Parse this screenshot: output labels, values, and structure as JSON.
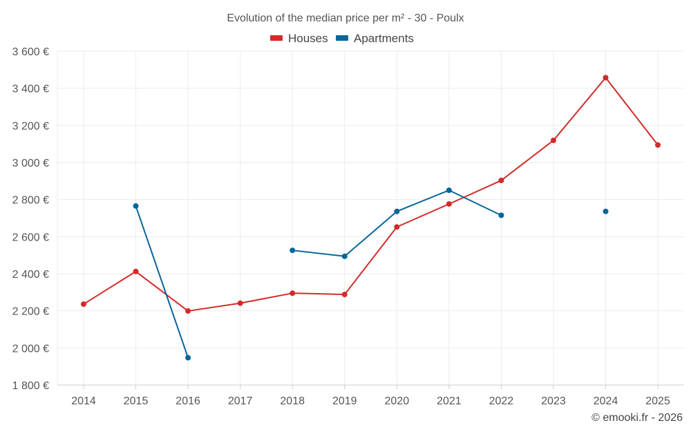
{
  "chart_data": {
    "type": "line",
    "title": "Evolution of the median price per m² - 30 - Poulx",
    "categories": [
      "2014",
      "2015",
      "2016",
      "2017",
      "2018",
      "2019",
      "2020",
      "2021",
      "2022",
      "2023",
      "2024",
      "2025"
    ],
    "series": [
      {
        "name": "Houses",
        "color": "#d32a2a",
        "values": [
          2236,
          2412,
          2199,
          2241,
          2295,
          2288,
          2652,
          2776,
          2903,
          3119,
          3457,
          3094
        ]
      },
      {
        "name": "Apartments",
        "color": "#06659a",
        "values": [
          null,
          2765,
          1947,
          null,
          2526,
          2494,
          2736,
          2850,
          2715,
          null,
          2736,
          null
        ]
      }
    ],
    "y_ticks": [
      1800,
      2000,
      2200,
      2400,
      2600,
      2800,
      3000,
      3200,
      3400,
      3600
    ],
    "y_tick_labels": [
      "1 800 €",
      "2 000 €",
      "2 200 €",
      "2 400 €",
      "2 600 €",
      "2 800 €",
      "3 000 €",
      "3 200 €",
      "3 400 €",
      "3 600 €"
    ],
    "ylim": [
      1800,
      3600
    ],
    "grid": true,
    "legend_position": "top-center",
    "xlabel": "",
    "ylabel": ""
  },
  "credit": "© emooki.fr - 2026"
}
